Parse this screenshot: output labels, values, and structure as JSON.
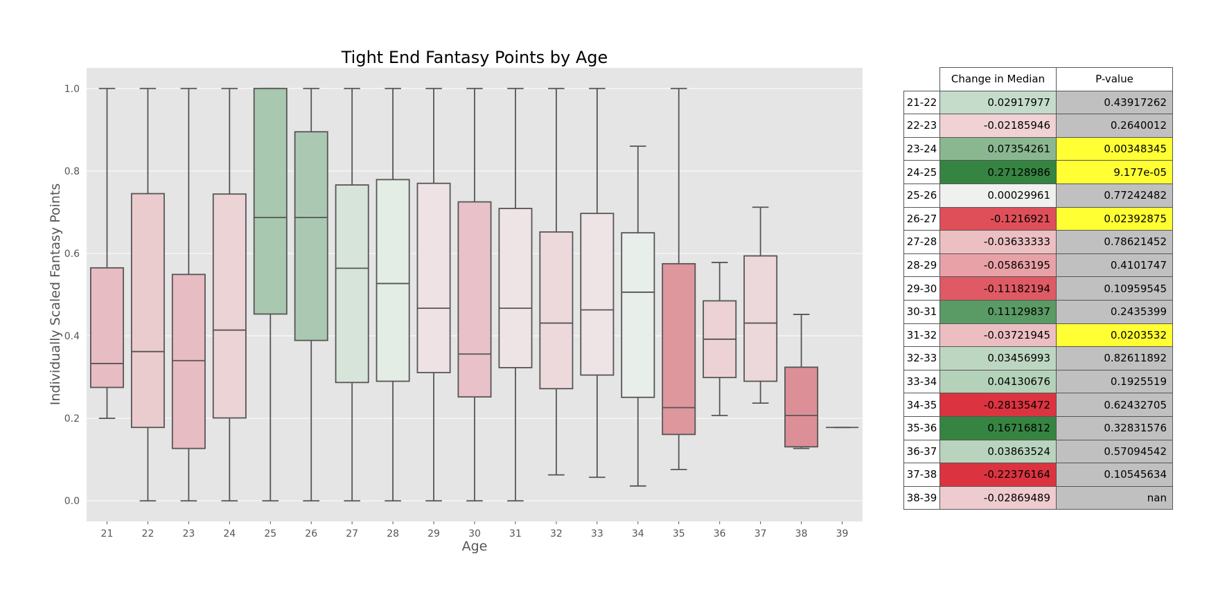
{
  "chart_data": {
    "type": "box",
    "title": "Tight End Fantasy Points by Age",
    "xlabel": "Age",
    "ylabel": "Individually Scaled Fantasy Points",
    "ylim": [
      -0.05,
      1.05
    ],
    "yticks": [
      "0.0",
      "0.2",
      "0.4",
      "0.6",
      "0.8",
      "1.0"
    ],
    "ytick_values": [
      0.0,
      0.2,
      0.4,
      0.6,
      0.8,
      1.0
    ],
    "grid": true,
    "categories": [
      "21",
      "22",
      "23",
      "24",
      "25",
      "26",
      "27",
      "28",
      "29",
      "30",
      "31",
      "32",
      "33",
      "34",
      "35",
      "36",
      "37",
      "38",
      "39"
    ],
    "boxes": [
      {
        "min": 0.2,
        "q1": 0.275,
        "median": 0.333,
        "q3": 0.565,
        "max": 1.0,
        "color": "#e8bcc3"
      },
      {
        "min": 0.0,
        "q1": 0.178,
        "median": 0.362,
        "q3": 0.745,
        "max": 1.0,
        "color": "#eacbce"
      },
      {
        "min": 0.0,
        "q1": 0.127,
        "median": 0.34,
        "q3": 0.549,
        "max": 1.0,
        "color": "#e8bcc3"
      },
      {
        "min": 0.0,
        "q1": 0.201,
        "median": 0.414,
        "q3": 0.744,
        "max": 1.0,
        "color": "#ecd3d6"
      },
      {
        "min": 0.0,
        "q1": 0.453,
        "median": 0.687,
        "q3": 1.0,
        "max": 1.0,
        "color": "#a8c8b0"
      },
      {
        "min": 0.0,
        "q1": 0.389,
        "median": 0.687,
        "q3": 0.895,
        "max": 1.0,
        "color": "#abc8b3"
      },
      {
        "min": 0.0,
        "q1": 0.287,
        "median": 0.564,
        "q3": 0.766,
        "max": 1.0,
        "color": "#d7e4da"
      },
      {
        "min": 0.0,
        "q1": 0.29,
        "median": 0.527,
        "q3": 0.779,
        "max": 1.0,
        "color": "#e3ece5"
      },
      {
        "min": 0.0,
        "q1": 0.311,
        "median": 0.467,
        "q3": 0.77,
        "max": 1.0,
        "color": "#eee2e4"
      },
      {
        "min": 0.0,
        "q1": 0.252,
        "median": 0.356,
        "q3": 0.725,
        "max": 1.0,
        "color": "#e8c2c8"
      },
      {
        "min": 0.0,
        "q1": 0.323,
        "median": 0.467,
        "q3": 0.709,
        "max": 1.0,
        "color": "#eee4e6"
      },
      {
        "min": 0.063,
        "q1": 0.272,
        "median": 0.431,
        "q3": 0.652,
        "max": 1.0,
        "color": "#edd9dc"
      },
      {
        "min": 0.057,
        "q1": 0.305,
        "median": 0.463,
        "q3": 0.697,
        "max": 1.0,
        "color": "#eee4e6"
      },
      {
        "min": 0.036,
        "q1": 0.251,
        "median": 0.506,
        "q3": 0.65,
        "max": 0.86,
        "color": "#e8eee9"
      },
      {
        "min": 0.076,
        "q1": 0.161,
        "median": 0.226,
        "q3": 0.575,
        "max": 1.0,
        "color": "#de979d"
      },
      {
        "min": 0.207,
        "q1": 0.299,
        "median": 0.392,
        "q3": 0.485,
        "max": 0.578,
        "color": "#ecd2d5"
      },
      {
        "min": 0.237,
        "q1": 0.29,
        "median": 0.431,
        "q3": 0.594,
        "max": 0.712,
        "color": "#ecd8da"
      },
      {
        "min": 0.127,
        "q1": 0.131,
        "median": 0.207,
        "q3": 0.324,
        "max": 0.452,
        "color": "#dc8f96"
      },
      {
        "min": 0.178,
        "q1": 0.178,
        "median": 0.178,
        "q3": 0.178,
        "max": 0.178,
        "color": "#e8bcc3"
      }
    ]
  },
  "table": {
    "headers": [
      "Change in Median",
      "P-value"
    ],
    "rows": [
      {
        "age": "21-22",
        "change": "0.02917977",
        "pvalue": "0.43917262",
        "change_color": "#c5dcca",
        "pvalue_color": "#c0c0c0"
      },
      {
        "age": "22-23",
        "change": "-0.02185946",
        "pvalue": "0.2640012",
        "change_color": "#f0d1d4",
        "pvalue_color": "#c0c0c0"
      },
      {
        "age": "23-24",
        "change": "0.07354261",
        "pvalue": "0.00348345",
        "change_color": "#8ab790",
        "pvalue_color": "#ffff33"
      },
      {
        "age": "24-25",
        "change": "0.27128986",
        "pvalue": "9.177e-05",
        "change_color": "#368442",
        "pvalue_color": "#ffff33"
      },
      {
        "age": "25-26",
        "change": "0.00029961",
        "pvalue": "0.77242482",
        "change_color": "#eff1ee",
        "pvalue_color": "#c0c0c0"
      },
      {
        "age": "26-27",
        "change": "-0.1216921",
        "pvalue": "0.02392875",
        "change_color": "#df4f5a",
        "pvalue_color": "#ffff33"
      },
      {
        "age": "27-28",
        "change": "-0.03633333",
        "pvalue": "0.78621452",
        "change_color": "#ecbfc2",
        "pvalue_color": "#c0c0c0"
      },
      {
        "age": "28-29",
        "change": "-0.05863195",
        "pvalue": "0.4101747",
        "change_color": "#e8a1a7",
        "pvalue_color": "#c0c0c0"
      },
      {
        "age": "29-30",
        "change": "-0.11182194",
        "pvalue": "0.10959545",
        "change_color": "#df5a64",
        "pvalue_color": "#c0c0c0"
      },
      {
        "age": "30-31",
        "change": "0.11129837",
        "pvalue": "0.2435399",
        "change_color": "#5a9a64",
        "pvalue_color": "#c0c0c0"
      },
      {
        "age": "31-32",
        "change": "-0.03721945",
        "pvalue": "0.0203532",
        "change_color": "#ecbec2",
        "pvalue_color": "#ffff33"
      },
      {
        "age": "32-33",
        "change": "0.03456993",
        "pvalue": "0.82611892",
        "change_color": "#bdd6c2",
        "pvalue_color": "#c0c0c0"
      },
      {
        "age": "33-34",
        "change": "0.04130676",
        "pvalue": "0.1925519",
        "change_color": "#b4d1ba",
        "pvalue_color": "#c0c0c0"
      },
      {
        "age": "34-35",
        "change": "-0.28135472",
        "pvalue": "0.62432705",
        "change_color": "#db3440",
        "pvalue_color": "#c0c0c0"
      },
      {
        "age": "35-36",
        "change": "0.16716812",
        "pvalue": "0.32831576",
        "change_color": "#368442",
        "pvalue_color": "#c0c0c0"
      },
      {
        "age": "36-37",
        "change": "0.03863524",
        "pvalue": "0.57094542",
        "change_color": "#b9d4be",
        "pvalue_color": "#c0c0c0"
      },
      {
        "age": "37-38",
        "change": "-0.22376164",
        "pvalue": "0.10545634",
        "change_color": "#db3440",
        "pvalue_color": "#c0c0c0"
      },
      {
        "age": "38-39",
        "change": "-0.02869489",
        "pvalue": "nan",
        "change_color": "#eecbce",
        "pvalue_color": "#c0c0c0"
      }
    ]
  }
}
